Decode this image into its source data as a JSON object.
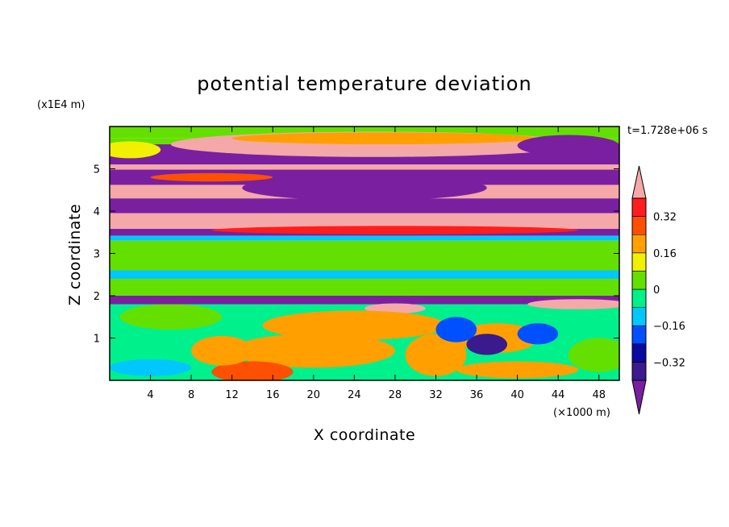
{
  "chart_data": {
    "type": "heatmap",
    "title": "potential temperature deviation",
    "xlabel": "X coordinate",
    "ylabel": "Z coordinate",
    "x_unit": "(×1000 m)",
    "y_unit": "(x1E4 m)",
    "time_label": "t=1.728e+06 s",
    "xlim": [
      0,
      50
    ],
    "ylim": [
      0,
      6
    ],
    "x_ticks": [
      4,
      8,
      12,
      16,
      20,
      24,
      28,
      32,
      36,
      40,
      44,
      48
    ],
    "y_ticks": [
      1,
      2,
      3,
      4,
      5
    ],
    "colorbar": {
      "colors": [
        "#7a1fa0",
        "#3a1a8c",
        "#0a0aa0",
        "#0050ff",
        "#00c8ff",
        "#00f08c",
        "#64e000",
        "#f0f000",
        "#ffa000",
        "#ff5000",
        "#ff1e1e",
        "#f5a8a8"
      ],
      "tick_values": [
        -0.32,
        -0.16,
        0,
        0.16,
        0.32
      ],
      "tick_labels": [
        "−0.32",
        "−0.16",
        "0",
        "0.16",
        "0.32"
      ],
      "level_min": -0.4,
      "level_step": 0.08
    },
    "bands": [
      {
        "z0": 5.72,
        "z1": 6.0,
        "value": 0.0
      },
      {
        "z0": 5.58,
        "z1": 5.72,
        "value": 0.05
      },
      {
        "z0": 5.1,
        "z1": 5.58,
        "value": -0.45
      },
      {
        "z0": 4.98,
        "z1": 5.1,
        "value": 0.45
      },
      {
        "z0": 4.62,
        "z1": 4.98,
        "value": -0.45
      },
      {
        "z0": 4.3,
        "z1": 4.62,
        "value": 0.45
      },
      {
        "z0": 3.95,
        "z1": 4.3,
        "value": -0.45
      },
      {
        "z0": 3.58,
        "z1": 3.95,
        "value": 0.45
      },
      {
        "z0": 3.42,
        "z1": 3.58,
        "value": -0.45
      },
      {
        "z0": 3.3,
        "z1": 3.42,
        "value": -0.12
      },
      {
        "z0": 2.6,
        "z1": 3.3,
        "value": 0.04
      },
      {
        "z0": 2.4,
        "z1": 2.6,
        "value": -0.1
      },
      {
        "z0": 2.0,
        "z1": 2.4,
        "value": 0.03
      },
      {
        "z0": 1.8,
        "z1": 2.0,
        "value": -0.45
      },
      {
        "z0": 0.0,
        "z1": 1.8,
        "value": -0.07
      }
    ],
    "blobs": [
      {
        "x": 26,
        "z": 5.58,
        "rx": 20,
        "rz": 0.3,
        "value": 0.45
      },
      {
        "x": 27,
        "z": 5.72,
        "rx": 15,
        "rz": 0.14,
        "value": 0.2
      },
      {
        "x": 45,
        "z": 5.55,
        "rx": 5,
        "rz": 0.25,
        "value": -0.45
      },
      {
        "x": 2,
        "z": 5.45,
        "rx": 3,
        "rz": 0.2,
        "value": 0.12
      },
      {
        "x": 25,
        "z": 4.55,
        "rx": 12,
        "rz": 0.3,
        "value": -0.45
      },
      {
        "x": 10,
        "z": 4.8,
        "rx": 6,
        "rz": 0.1,
        "value": 0.3
      },
      {
        "x": 28,
        "z": 3.55,
        "rx": 18,
        "rz": 0.1,
        "value": 0.32
      },
      {
        "x": 28,
        "z": 1.7,
        "rx": 3,
        "rz": 0.12,
        "value": 0.45
      },
      {
        "x": 46,
        "z": 1.8,
        "rx": 5,
        "rz": 0.12,
        "value": 0.45
      },
      {
        "x": 24,
        "z": 1.3,
        "rx": 9,
        "rz": 0.35,
        "value": 0.16
      },
      {
        "x": 20,
        "z": 0.7,
        "rx": 8,
        "rz": 0.4,
        "value": 0.18
      },
      {
        "x": 14,
        "z": 0.2,
        "rx": 4,
        "rz": 0.25,
        "value": 0.3
      },
      {
        "x": 11,
        "z": 0.7,
        "rx": 3,
        "rz": 0.35,
        "value": 0.18
      },
      {
        "x": 32,
        "z": 0.6,
        "rx": 3,
        "rz": 0.5,
        "value": 0.16
      },
      {
        "x": 38,
        "z": 1.0,
        "rx": 4,
        "rz": 0.35,
        "value": 0.18
      },
      {
        "x": 37,
        "z": 0.85,
        "rx": 2,
        "rz": 0.25,
        "value": -0.35
      },
      {
        "x": 34,
        "z": 1.2,
        "rx": 2,
        "rz": 0.3,
        "value": -0.18
      },
      {
        "x": 42,
        "z": 1.1,
        "rx": 2,
        "rz": 0.25,
        "value": -0.2
      },
      {
        "x": 40,
        "z": 0.25,
        "rx": 6,
        "rz": 0.2,
        "value": 0.2
      },
      {
        "x": 48,
        "z": 0.6,
        "rx": 3,
        "rz": 0.4,
        "value": 0.05
      },
      {
        "x": 6,
        "z": 1.5,
        "rx": 5,
        "rz": 0.3,
        "value": 0.05
      },
      {
        "x": 4,
        "z": 0.3,
        "rx": 4,
        "rz": 0.2,
        "value": -0.12
      }
    ]
  }
}
